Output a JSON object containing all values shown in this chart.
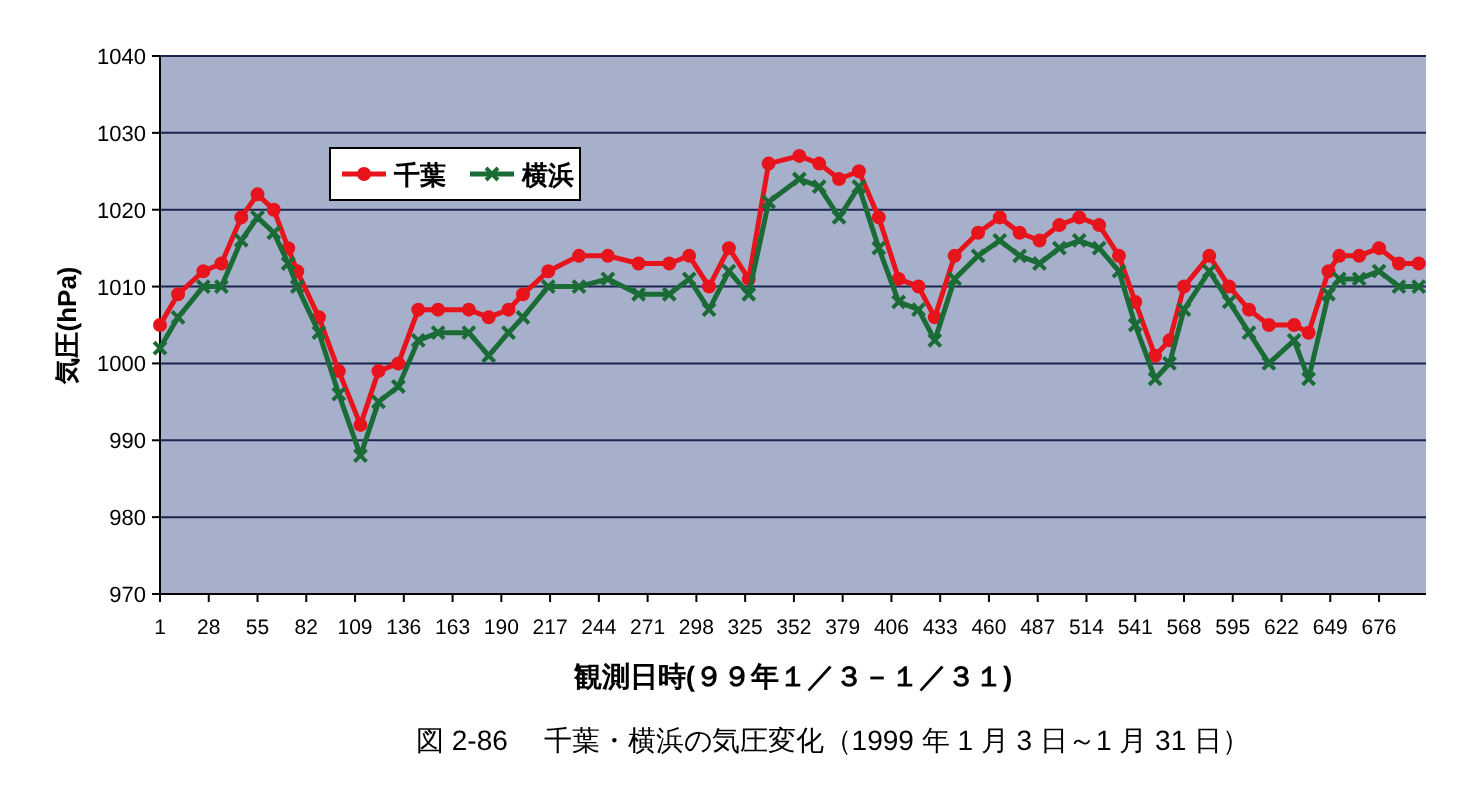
{
  "chart_data": {
    "type": "line",
    "xlabel": "観測日時(９９年１／３－１／３１)",
    "ylabel": "気圧(hPa)",
    "annotations": [
      "図 2-86　 千葉・横浜の気圧変化（1999 年 1 月 3 日～1 月 31 日）"
    ],
    "x": [
      1,
      11,
      25,
      35,
      46,
      55,
      64,
      72,
      77,
      89,
      100,
      112,
      122,
      133,
      144,
      155,
      172,
      183,
      194,
      202,
      216,
      233,
      249,
      266,
      283,
      294,
      305,
      316,
      327,
      338,
      355,
      366,
      377,
      388,
      399,
      410,
      421,
      430,
      441,
      454,
      466,
      477,
      488,
      499,
      510,
      521,
      532,
      541,
      552,
      560,
      568,
      582,
      593,
      604,
      615,
      629,
      637,
      648,
      654,
      665,
      676,
      687,
      698
    ],
    "series": [
      {
        "name": "千葉",
        "color": "#e8141c",
        "marker": "circle",
        "values": [
          1005,
          1009,
          1012,
          1013,
          1019,
          1022,
          1020,
          1015,
          1012,
          1006,
          999,
          992,
          999,
          1000,
          1007,
          1007,
          1007,
          1006,
          1007,
          1009,
          1012,
          1014,
          1014,
          1013,
          1013,
          1014,
          1010,
          1015,
          1011,
          1026,
          1027,
          1026,
          1024,
          1025,
          1019,
          1011,
          1010,
          1006,
          1014,
          1017,
          1019,
          1017,
          1016,
          1018,
          1019,
          1018,
          1014,
          1008,
          1001,
          1003,
          1010,
          1014,
          1010,
          1007,
          1005,
          1005,
          1004,
          1012,
          1014,
          1014,
          1015,
          1013,
          1013
        ]
      },
      {
        "name": "横浜",
        "color": "#1a6b35",
        "marker": "cross",
        "values": [
          1002,
          1006,
          1010,
          1010,
          1016,
          1019,
          1017,
          1013,
          1010,
          1004,
          996,
          988,
          995,
          997,
          1003,
          1004,
          1004,
          1001,
          1004,
          1006,
          1010,
          1010,
          1011,
          1009,
          1009,
          1011,
          1007,
          1012,
          1009,
          1021,
          1024,
          1023,
          1019,
          1023,
          1015,
          1008,
          1007,
          1003,
          1011,
          1014,
          1016,
          1014,
          1013,
          1015,
          1016,
          1015,
          1012,
          1005,
          998,
          1000,
          1007,
          1012,
          1008,
          1004,
          1000,
          1003,
          998,
          1009,
          1011,
          1011,
          1012,
          1010,
          1010
        ]
      }
    ],
    "xlim": [
      1,
      702
    ],
    "xticks": [
      1,
      28,
      55,
      82,
      109,
      136,
      163,
      190,
      217,
      244,
      271,
      298,
      325,
      352,
      379,
      406,
      433,
      460,
      487,
      514,
      541,
      568,
      595,
      622,
      649,
      676
    ],
    "ylim": [
      970,
      1040
    ],
    "yticks": [
      970,
      980,
      990,
      1000,
      1010,
      1020,
      1030,
      1040
    ],
    "grid": "y",
    "legend": "top left"
  }
}
